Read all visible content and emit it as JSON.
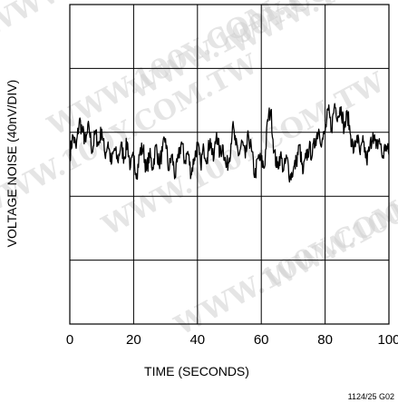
{
  "watermark": "WWW.100Y.COM.TW",
  "figure_id": "1124/25 G02",
  "chart_data": {
    "type": "line",
    "title": "",
    "xlabel": "TIME (SECONDS)",
    "ylabel": "VOLTAGE NOISE (40nV/DIV)",
    "xlim": [
      0,
      100
    ],
    "ylim": [
      -2.5,
      2.5
    ],
    "x_ticks": [
      "0",
      "20",
      "40",
      "60",
      "80",
      "100"
    ],
    "y_divisions": 5,
    "grid": true,
    "legend": "none",
    "series": [
      {
        "values": [
          [
            0,
            0.15
          ],
          [
            1,
            0.45
          ],
          [
            2,
            0.25
          ],
          [
            3,
            0.7
          ],
          [
            4,
            0.5
          ],
          [
            5,
            0.35
          ],
          [
            6,
            0.6
          ],
          [
            7,
            0.2
          ],
          [
            8,
            0.5
          ],
          [
            9,
            0.3
          ],
          [
            10,
            0.55
          ],
          [
            11,
            0.15
          ],
          [
            12,
            0.35
          ],
          [
            13,
            0.0
          ],
          [
            14,
            0.25
          ],
          [
            15,
            0.05
          ],
          [
            16,
            0.3
          ],
          [
            17,
            0.1
          ],
          [
            18,
            0.35
          ],
          [
            19,
            -0.05
          ],
          [
            20,
            0.1
          ],
          [
            21,
            -0.15
          ],
          [
            22,
            0.2
          ],
          [
            23,
            0.25
          ],
          [
            24,
            -0.1
          ],
          [
            25,
            0.15
          ],
          [
            26,
            -0.05
          ],
          [
            27,
            0.3
          ],
          [
            28,
            0.0
          ],
          [
            29,
            0.2
          ],
          [
            30,
            0.4
          ],
          [
            31,
            -0.1
          ],
          [
            32,
            0.15
          ],
          [
            33,
            -0.2
          ],
          [
            34,
            0.1
          ],
          [
            35,
            0.35
          ],
          [
            36,
            0.05
          ],
          [
            37,
            0.2
          ],
          [
            38,
            -0.15
          ],
          [
            39,
            0.1
          ],
          [
            40,
            0.3
          ],
          [
            41,
            0.0
          ],
          [
            42,
            0.25
          ],
          [
            43,
            0.1
          ],
          [
            44,
            0.4
          ],
          [
            45,
            0.05
          ],
          [
            46,
            0.5
          ],
          [
            47,
            0.15
          ],
          [
            48,
            0.3
          ],
          [
            49,
            -0.05
          ],
          [
            50,
            0.1
          ],
          [
            51,
            0.6
          ],
          [
            52,
            0.3
          ],
          [
            53,
            0.15
          ],
          [
            54,
            0.35
          ],
          [
            55,
            0.1
          ],
          [
            56,
            0.45
          ],
          [
            57,
            0.2
          ],
          [
            58,
            -0.2
          ],
          [
            59,
            0.1
          ],
          [
            60,
            0.05
          ],
          [
            61,
            -0.05
          ],
          [
            62,
            0.7
          ],
          [
            63,
            0.85
          ],
          [
            64,
            0.2
          ],
          [
            65,
            -0.05
          ],
          [
            66,
            0.15
          ],
          [
            67,
            -0.1
          ],
          [
            68,
            0.1
          ],
          [
            69,
            -0.2
          ],
          [
            70,
            -0.1
          ],
          [
            71,
            0.05
          ],
          [
            72,
            0.3
          ],
          [
            73,
            -0.15
          ],
          [
            74,
            0.1
          ],
          [
            75,
            0.25
          ],
          [
            76,
            0.15
          ],
          [
            77,
            0.4
          ],
          [
            78,
            0.55
          ],
          [
            79,
            0.35
          ],
          [
            80,
            0.5
          ],
          [
            81,
            0.85
          ],
          [
            82,
            0.55
          ],
          [
            83,
            0.95
          ],
          [
            84,
            0.75
          ],
          [
            85,
            0.9
          ],
          [
            86,
            0.55
          ],
          [
            87,
            0.8
          ],
          [
            88,
            0.45
          ],
          [
            89,
            0.2
          ],
          [
            90,
            0.45
          ],
          [
            91,
            0.15
          ],
          [
            92,
            0.35
          ],
          [
            93,
            0.05
          ],
          [
            94,
            0.25
          ],
          [
            95,
            0.5
          ],
          [
            96,
            0.25
          ],
          [
            97,
            0.4
          ],
          [
            98,
            0.1
          ],
          [
            99,
            0.3
          ],
          [
            100,
            0.15
          ]
        ]
      }
    ]
  }
}
